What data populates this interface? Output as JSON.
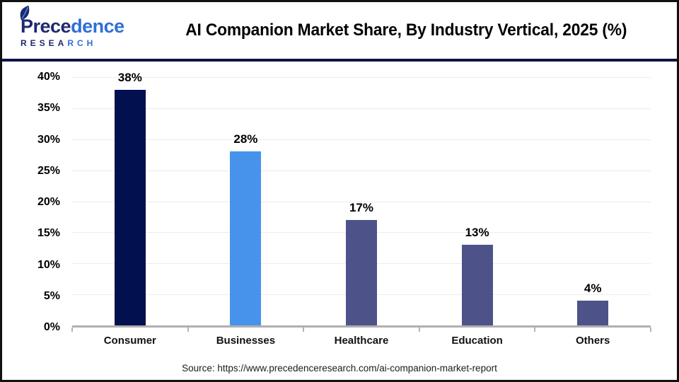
{
  "header": {
    "logo": {
      "brand_part1": "Prece",
      "brand_part2": "dence",
      "research_part1": "RESEA",
      "research_part2": "RCH"
    },
    "title": "AI Companion Market Share, By Industry Vertical, 2025 (%)"
  },
  "chart_data": {
    "type": "bar",
    "title": "AI Companion Market Share, By Industry Vertical, 2025 (%)",
    "categories": [
      "Consumer",
      "Businesses",
      "Healthcare",
      "Education",
      "Others"
    ],
    "values": [
      38,
      28,
      17,
      13,
      4
    ],
    "value_labels": [
      "38%",
      "28%",
      "17%",
      "13%",
      "4%"
    ],
    "xlabel": "",
    "ylabel": "",
    "ylim": [
      0,
      40
    ],
    "ytick_step": 5,
    "ytick_labels": [
      "40%",
      "35%",
      "30%",
      "25%",
      "20%",
      "15%",
      "10%",
      "5%",
      "0%"
    ],
    "grid": true,
    "legend": false,
    "bar_colors": [
      "#03104f",
      "#4793ec",
      "#4d5389",
      "#4d5389",
      "#4d5389"
    ]
  },
  "footer": {
    "source": "Source: https://www.precedenceresearch.com/ai-companion-market-report"
  },
  "colors": {
    "brand_navy": "#1e2a6e",
    "brand_blue": "#2f6fd6",
    "divider_navy": "#0d1545",
    "axis_gray": "#b0b0b0",
    "gridline_gray": "#ececec",
    "frame_border": "#111111"
  }
}
